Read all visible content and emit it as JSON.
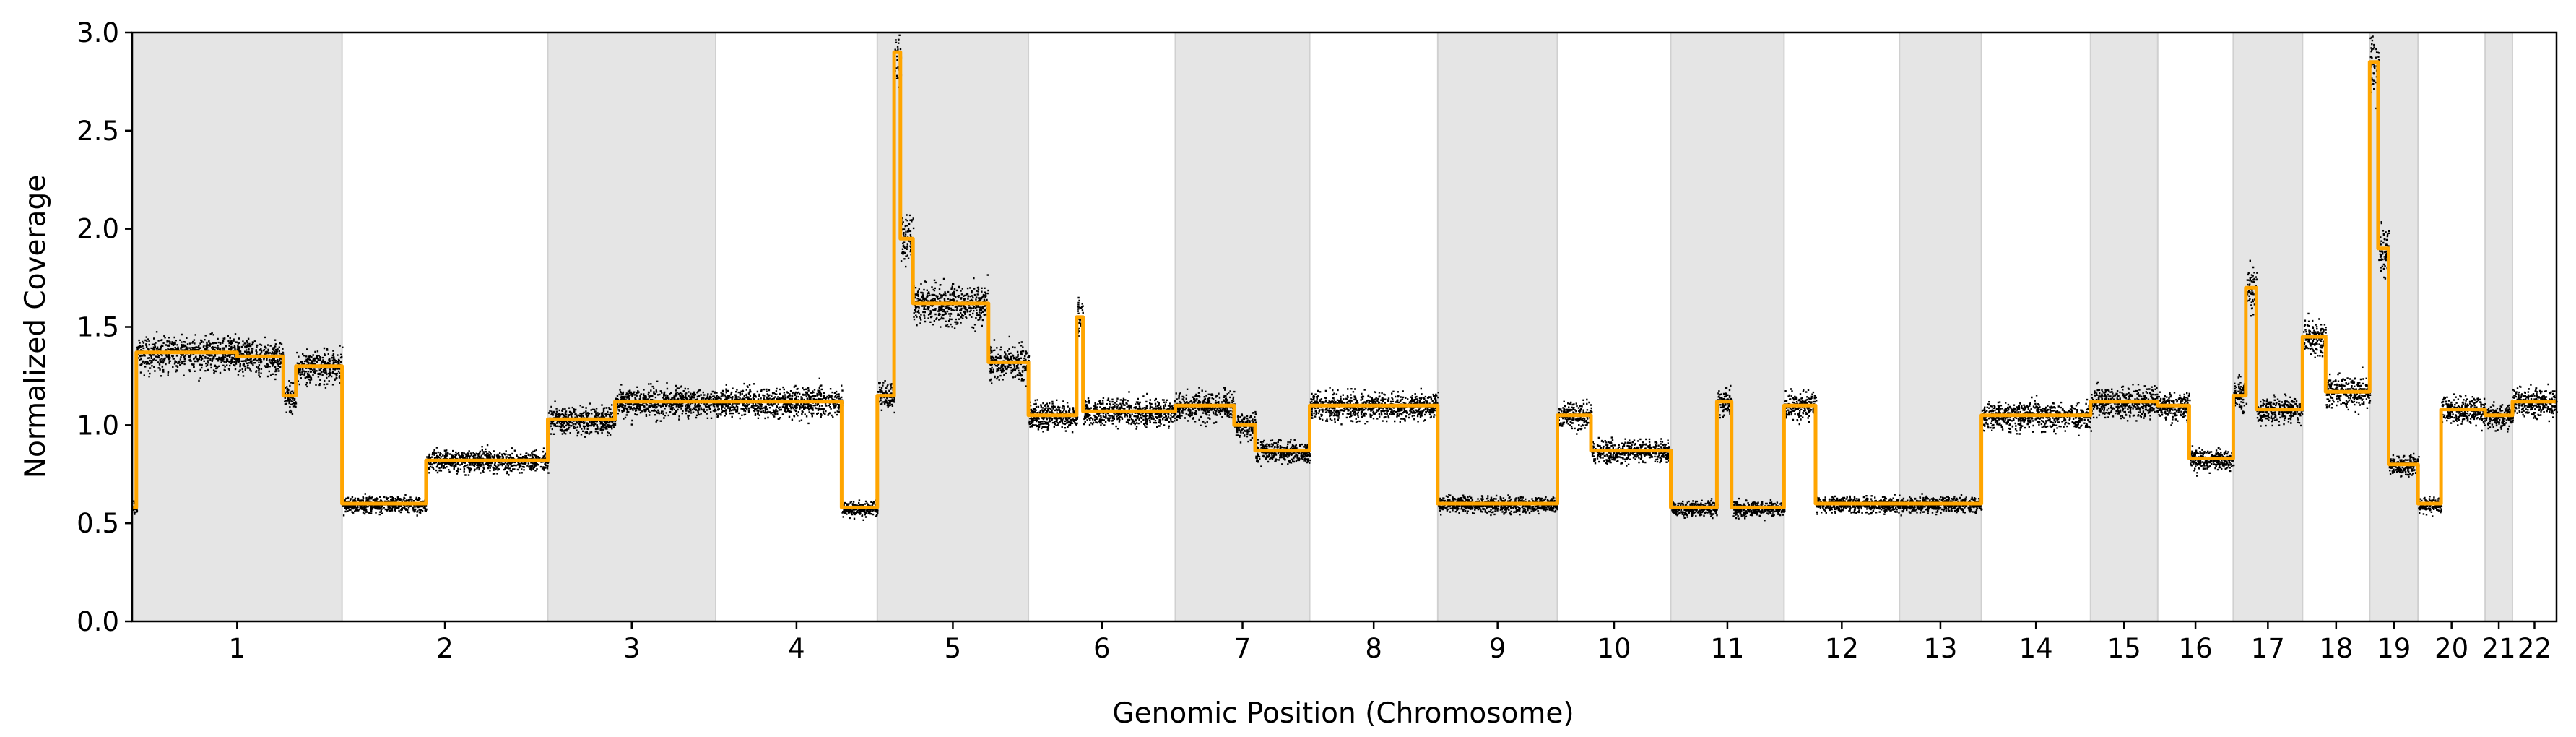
{
  "chart_data": {
    "type": "scatter",
    "title": "",
    "xlabel": "Genomic Position (Chromosome)",
    "ylabel": "Normalized Coverage",
    "ylim": [
      0,
      3.0
    ],
    "yticks": [
      "0.0",
      "0.5",
      "1.0",
      "1.5",
      "2.0",
      "2.5",
      "3.0"
    ],
    "grid": false,
    "legend": "none",
    "colors": {
      "points": "#000000",
      "segment_line": "#FFA500",
      "band_shade": "#e5e5e5",
      "band_edge": "#d0d0d0",
      "axes": "#000000"
    },
    "chromosomes": [
      {
        "label": "1",
        "start": 0,
        "end": 1.0,
        "shaded": true,
        "segments": [
          [
            0,
            0.02,
            0.58
          ],
          [
            0.02,
            0.5,
            1.37
          ],
          [
            0.5,
            0.72,
            1.35
          ],
          [
            0.72,
            0.78,
            1.15
          ],
          [
            0.78,
            1.0,
            1.3
          ]
        ]
      },
      {
        "label": "2",
        "start": 1.0,
        "end": 1.98,
        "shaded": false,
        "segments": [
          [
            1.0,
            1.4,
            0.6
          ],
          [
            1.4,
            1.98,
            0.82
          ]
        ]
      },
      {
        "label": "3",
        "start": 1.98,
        "end": 2.78,
        "shaded": true,
        "segments": [
          [
            1.98,
            2.3,
            1.03
          ],
          [
            2.3,
            2.78,
            1.12
          ]
        ]
      },
      {
        "label": "4",
        "start": 2.78,
        "end": 3.55,
        "shaded": false,
        "segments": [
          [
            2.78,
            3.38,
            1.12
          ],
          [
            3.38,
            3.55,
            0.58
          ]
        ]
      },
      {
        "label": "5",
        "start": 3.55,
        "end": 4.27,
        "shaded": true,
        "segments": [
          [
            3.55,
            3.63,
            1.15
          ],
          [
            3.63,
            3.66,
            2.9
          ],
          [
            3.66,
            3.72,
            1.95
          ],
          [
            3.72,
            4.08,
            1.62
          ],
          [
            4.08,
            4.27,
            1.32
          ]
        ]
      },
      {
        "label": "6",
        "start": 4.27,
        "end": 4.97,
        "shaded": false,
        "segments": [
          [
            4.27,
            4.5,
            1.05
          ],
          [
            4.5,
            4.53,
            1.55
          ],
          [
            4.53,
            4.97,
            1.07
          ]
        ]
      },
      {
        "label": "7",
        "start": 4.97,
        "end": 5.61,
        "shaded": true,
        "segments": [
          [
            4.97,
            5.25,
            1.1
          ],
          [
            5.25,
            5.35,
            1.0
          ],
          [
            5.35,
            5.61,
            0.87
          ]
        ]
      },
      {
        "label": "8",
        "start": 5.61,
        "end": 6.22,
        "shaded": false,
        "segments": [
          [
            5.61,
            6.22,
            1.1
          ]
        ]
      },
      {
        "label": "9",
        "start": 6.22,
        "end": 6.79,
        "shaded": true,
        "segments": [
          [
            6.22,
            6.79,
            0.6
          ]
        ]
      },
      {
        "label": "10",
        "start": 6.79,
        "end": 7.33,
        "shaded": false,
        "segments": [
          [
            6.79,
            6.95,
            1.05
          ],
          [
            6.95,
            7.33,
            0.87
          ]
        ]
      },
      {
        "label": "11",
        "start": 7.33,
        "end": 7.87,
        "shaded": true,
        "segments": [
          [
            7.33,
            7.55,
            0.58
          ],
          [
            7.55,
            7.62,
            1.12
          ],
          [
            7.62,
            7.87,
            0.58
          ]
        ]
      },
      {
        "label": "12",
        "start": 7.87,
        "end": 8.42,
        "shaded": false,
        "segments": [
          [
            7.87,
            8.02,
            1.1
          ],
          [
            8.02,
            8.42,
            0.6
          ]
        ]
      },
      {
        "label": "13",
        "start": 8.42,
        "end": 8.81,
        "shaded": true,
        "segments": [
          [
            8.42,
            8.81,
            0.6
          ]
        ]
      },
      {
        "label": "14",
        "start": 8.81,
        "end": 9.33,
        "shaded": false,
        "segments": [
          [
            8.81,
            9.33,
            1.05
          ]
        ]
      },
      {
        "label": "15",
        "start": 9.33,
        "end": 9.65,
        "shaded": true,
        "segments": [
          [
            9.33,
            9.65,
            1.12
          ]
        ]
      },
      {
        "label": "16",
        "start": 9.65,
        "end": 10.01,
        "shaded": false,
        "segments": [
          [
            9.65,
            9.8,
            1.1
          ],
          [
            9.8,
            10.01,
            0.83
          ]
        ]
      },
      {
        "label": "17",
        "start": 10.01,
        "end": 10.34,
        "shaded": true,
        "segments": [
          [
            10.01,
            10.07,
            1.15
          ],
          [
            10.07,
            10.12,
            1.7
          ],
          [
            10.12,
            10.34,
            1.08
          ]
        ]
      },
      {
        "label": "18",
        "start": 10.34,
        "end": 10.66,
        "shaded": false,
        "segments": [
          [
            10.34,
            10.45,
            1.45
          ],
          [
            10.45,
            10.66,
            1.17
          ]
        ]
      },
      {
        "label": "19",
        "start": 10.66,
        "end": 10.89,
        "shaded": true,
        "segments": [
          [
            10.66,
            10.7,
            2.85
          ],
          [
            10.7,
            10.75,
            1.9
          ],
          [
            10.75,
            10.89,
            0.8
          ]
        ]
      },
      {
        "label": "20",
        "start": 10.89,
        "end": 11.21,
        "shaded": false,
        "segments": [
          [
            10.89,
            11.0,
            0.6
          ],
          [
            11.0,
            11.21,
            1.08
          ]
        ]
      },
      {
        "label": "21",
        "start": 11.21,
        "end": 11.34,
        "shaded": true,
        "segments": [
          [
            11.21,
            11.34,
            1.05
          ]
        ]
      },
      {
        "label": "22",
        "start": 11.34,
        "end": 11.55,
        "shaded": false,
        "segments": [
          [
            11.34,
            11.55,
            1.12
          ]
        ]
      }
    ]
  }
}
